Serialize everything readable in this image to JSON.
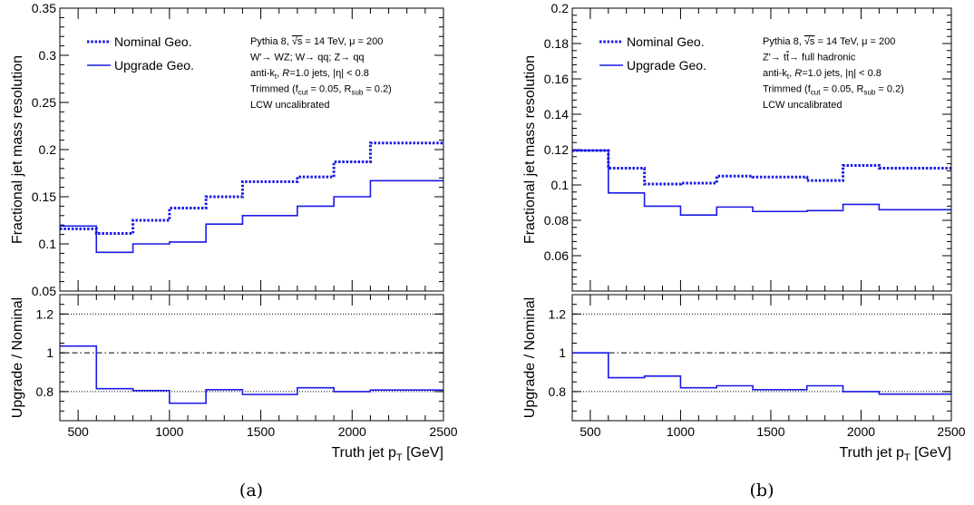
{
  "chart_data": [
    {
      "type": "line",
      "panel_label": "(a)",
      "xlabel": "Truth jet p",
      "xlabel_sub": "T",
      "xlabel_unit": " [GeV]",
      "xlim": [
        400,
        2500
      ],
      "xticks": [
        500,
        1000,
        1500,
        2000,
        2500
      ],
      "top": {
        "ylabel": "Fractional jet mass resolution",
        "ylim": [
          0.05,
          0.35
        ],
        "yticks": [
          "0.05",
          "0.1",
          "0.15",
          "0.2",
          "0.25",
          "0.3",
          "0.35"
        ],
        "bin_edges": [
          400,
          600,
          800,
          1000,
          1200,
          1400,
          1700,
          1900,
          2100,
          2500
        ],
        "series": [
          {
            "name": "Nominal Geo.",
            "style": "dotted",
            "color": "#1a1ae6",
            "values": [
              0.116,
              0.111,
              0.125,
              0.138,
              0.15,
              0.166,
              0.171,
              0.187,
              0.207
            ]
          },
          {
            "name": "Upgrade Geo.",
            "style": "solid",
            "color": "#1a1ae6",
            "values": [
              0.119,
              0.091,
              0.1,
              0.102,
              0.121,
              0.13,
              0.14,
              0.15,
              0.167
            ]
          }
        ],
        "annotations": [
          [
            "Pythia 8, ",
            {
              "t": "√s",
              "over": true
            },
            " = 14 TeV, μ = 200"
          ],
          [
            "W'→ WZ; W→ qq; Z→ qq"
          ],
          [
            "anti-k",
            {
              "t": "t",
              "sub": true
            },
            ", ",
            {
              "t": "R",
              "italic": true
            },
            "=1.0 jets, |η| < 0.8"
          ],
          [
            "Trimmed (f",
            {
              "t": "cut",
              "sub": true
            },
            " = 0.05, R",
            {
              "t": "sub",
              "sub": true
            },
            " = 0.2)"
          ],
          [
            "LCW uncalibrated"
          ]
        ]
      },
      "bottom": {
        "ylabel": "Upgrade / Nominal",
        "ylim": [
          0.65,
          1.3
        ],
        "yticks": [
          "0.8",
          "1",
          "1.2"
        ],
        "reference_lines": [
          0.8,
          1.0,
          1.2
        ],
        "bin_edges": [
          400,
          600,
          800,
          1000,
          1200,
          1400,
          1700,
          1900,
          2100,
          2500
        ],
        "values": [
          1.035,
          0.815,
          0.805,
          0.74,
          0.81,
          0.785,
          0.82,
          0.8,
          0.808
        ]
      }
    },
    {
      "type": "line",
      "panel_label": "(b)",
      "xlabel": "Truth jet p",
      "xlabel_sub": "T",
      "xlabel_unit": " [GeV]",
      "xlim": [
        400,
        2500
      ],
      "xticks": [
        500,
        1000,
        1500,
        2000,
        2500
      ],
      "top": {
        "ylabel": "Fractional jet mass resolution",
        "ylim": [
          0.04,
          0.2
        ],
        "yticks": [
          "0.06",
          "0.08",
          "0.1",
          "0.12",
          "0.14",
          "0.16",
          "0.18",
          "0.2"
        ],
        "bin_edges": [
          400,
          600,
          800,
          1000,
          1200,
          1400,
          1700,
          1900,
          2100,
          2500
        ],
        "series": [
          {
            "name": "Nominal Geo.",
            "style": "dotted",
            "color": "#1a1ae6",
            "values": [
              0.1195,
              0.1095,
              0.1005,
              0.101,
              0.105,
              0.1045,
              0.1025,
              0.111,
              0.1095
            ]
          },
          {
            "name": "Upgrade Geo.",
            "style": "solid",
            "color": "#1a1ae6",
            "values": [
              0.1195,
              0.0955,
              0.088,
              0.083,
              0.0875,
              0.085,
              0.0855,
              0.089,
              0.086
            ]
          }
        ],
        "annotations": [
          [
            "Pythia 8, ",
            {
              "t": "√s",
              "over": true
            },
            " = 14 TeV, μ = 200"
          ],
          [
            "Z'→ t",
            {
              "t": "t",
              "over": true
            },
            "→ full hadronic"
          ],
          [
            "anti-k",
            {
              "t": "t",
              "sub": true
            },
            ", ",
            {
              "t": "R",
              "italic": true
            },
            "=1.0 jets, |η| < 0.8"
          ],
          [
            "Trimmed (f",
            {
              "t": "cut",
              "sub": true
            },
            " = 0.05, R",
            {
              "t": "sub",
              "sub": true
            },
            " = 0.2)"
          ],
          [
            "LCW uncalibrated"
          ]
        ]
      },
      "bottom": {
        "ylabel": "Upgrade / Nominal",
        "ylim": [
          0.65,
          1.3
        ],
        "yticks": [
          "0.8",
          "1",
          "1.2"
        ],
        "reference_lines": [
          0.8,
          1.0,
          1.2
        ],
        "bin_edges": [
          400,
          600,
          800,
          1000,
          1200,
          1400,
          1700,
          1900,
          2100,
          2500
        ],
        "values": [
          1.0,
          0.872,
          0.88,
          0.82,
          0.83,
          0.81,
          0.83,
          0.8,
          0.787
        ]
      }
    }
  ]
}
